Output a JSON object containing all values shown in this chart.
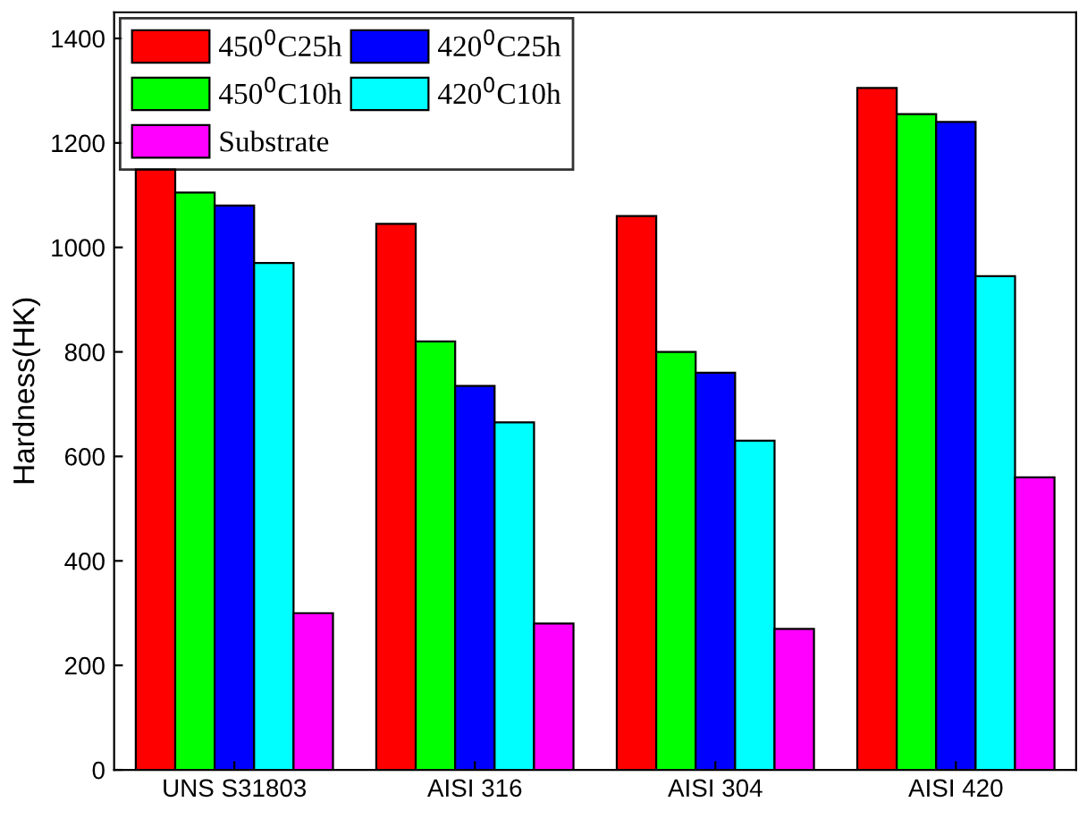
{
  "chart_data": {
    "type": "bar",
    "ylabel": "Hardness(HK)",
    "categories": [
      "UNS S31803",
      "AISI 316",
      "AISI 304",
      "AISI 420"
    ],
    "series": [
      {
        "name": "450$^{0}$C25h",
        "color": "#ff0000",
        "values": [
          1150,
          1045,
          1060,
          1305
        ]
      },
      {
        "name": "450$^{0}$C10h",
        "color": "#00ff00",
        "values": [
          1105,
          820,
          800,
          1255
        ]
      },
      {
        "name": "420$^{0}$C25h",
        "color": "#0000ff",
        "values": [
          1080,
          735,
          760,
          1240
        ]
      },
      {
        "name": "420$^{0}$C10h",
        "color": "#00ffff",
        "values": [
          970,
          665,
          630,
          945
        ]
      },
      {
        "name": "Substrate",
        "color": "#ff00ff",
        "values": [
          300,
          280,
          270,
          560
        ]
      }
    ],
    "ylim": [
      0,
      1450
    ],
    "yticks": [
      0,
      200,
      400,
      600,
      800,
      1000,
      1200,
      1400
    ],
    "legend": "top left",
    "grid": false
  }
}
